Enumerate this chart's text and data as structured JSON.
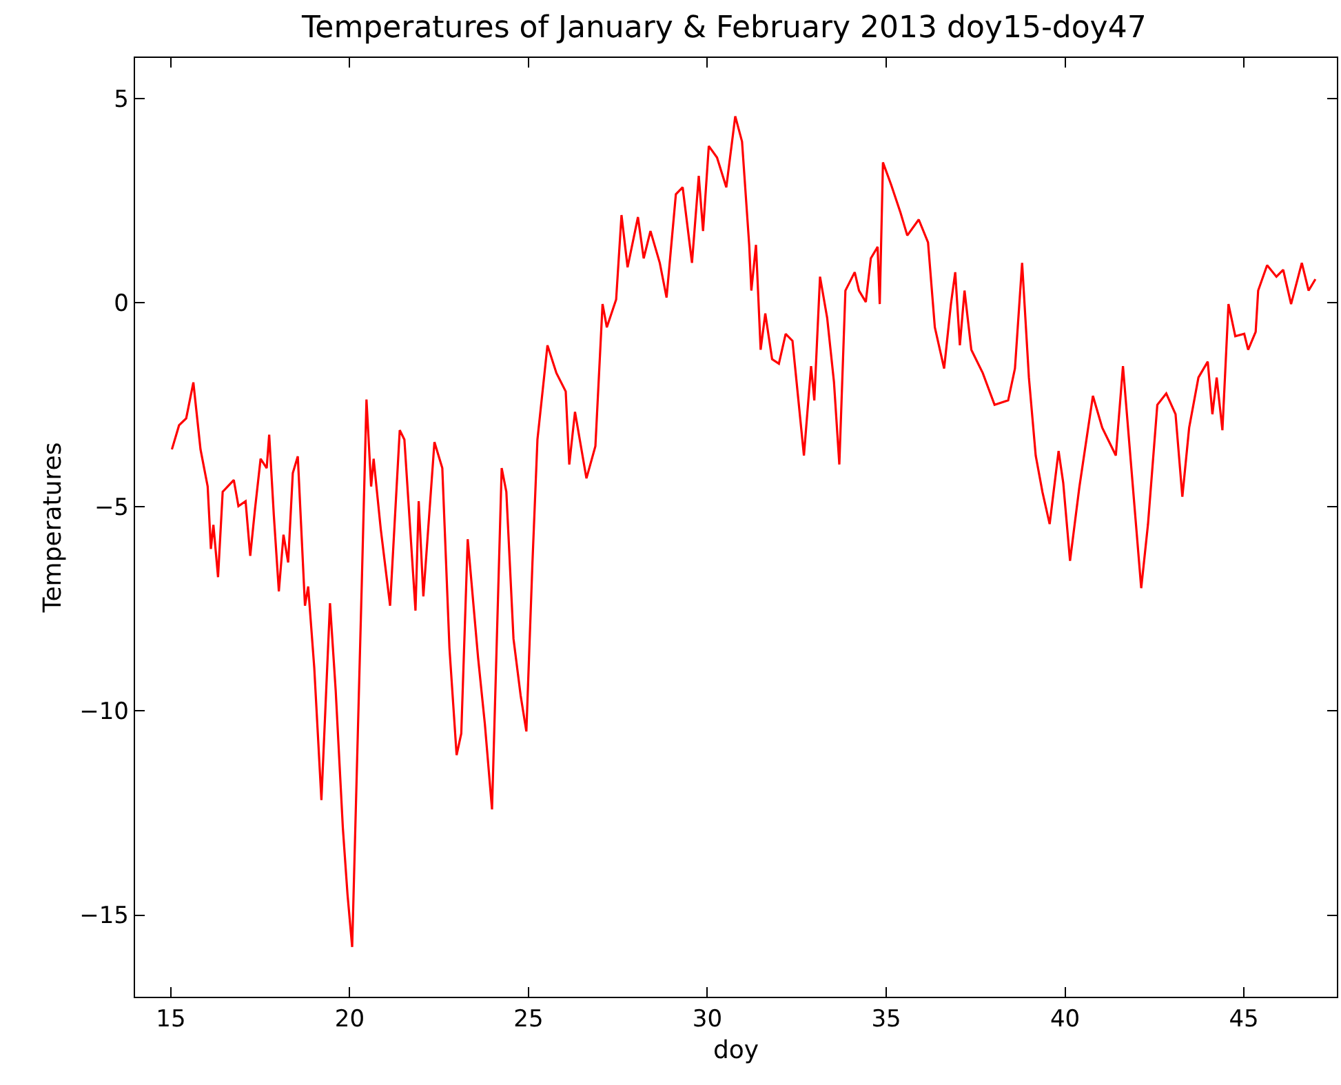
{
  "chart_data": {
    "type": "line",
    "title": "Temperatures of January & February 2013 doy15-doy47",
    "xlabel": "doy",
    "ylabel": "Temperatures",
    "xlim": [
      14,
      47.6
    ],
    "ylim": [
      -17,
      6
    ],
    "xticks": [
      15,
      20,
      25,
      30,
      35,
      40,
      45
    ],
    "yticks": [
      {
        "value": -15,
        "label": "−15"
      },
      {
        "value": -10,
        "label": "−10"
      },
      {
        "value": -5,
        "label": "−5"
      },
      0,
      5
    ],
    "marker": "none",
    "line_style": "solid",
    "series": [
      {
        "color": "#ff0000",
        "x": [
          15.03,
          15.23,
          15.43,
          15.63,
          15.83,
          16.03,
          16.12,
          16.19,
          16.32,
          16.45,
          16.76,
          16.89,
          17.09,
          17.22,
          17.35,
          17.51,
          17.68,
          17.75,
          17.88,
          18.02,
          18.15,
          18.28,
          18.41,
          18.55,
          18.75,
          18.84,
          19.01,
          19.21,
          19.45,
          19.61,
          19.81,
          19.94,
          20.07,
          20.34,
          20.47,
          20.6,
          20.67,
          20.87,
          21.13,
          21.4,
          21.53,
          21.84,
          21.93,
          22.06,
          22.37,
          22.59,
          22.79,
          22.99,
          23.12,
          23.3,
          23.59,
          23.78,
          23.98,
          24.25,
          24.38,
          24.58,
          24.78,
          24.94,
          25.11,
          25.25,
          25.53,
          25.78,
          26.04,
          26.14,
          26.3,
          26.62,
          26.87,
          27.07,
          27.19,
          27.45,
          27.6,
          27.77,
          28.06,
          28.22,
          28.41,
          28.67,
          28.86,
          29.12,
          29.31,
          29.57,
          29.76,
          29.88,
          30.04,
          30.27,
          30.53,
          30.78,
          30.97,
          31.17,
          31.23,
          31.36,
          31.49,
          31.62,
          31.81,
          32.0,
          32.19,
          32.38,
          32.7,
          32.9,
          32.99,
          33.15,
          33.35,
          33.54,
          33.69,
          33.86,
          34.12,
          34.24,
          34.43,
          34.57,
          34.76,
          34.82,
          34.91,
          35.14,
          35.4,
          35.59,
          35.91,
          36.17,
          36.36,
          36.62,
          36.81,
          36.93,
          37.06,
          37.19,
          37.38,
          37.7,
          38.03,
          38.41,
          38.6,
          38.8,
          38.99,
          39.18,
          39.37,
          39.57,
          39.82,
          39.95,
          40.14,
          40.4,
          40.78,
          41.04,
          41.42,
          41.62,
          42.13,
          42.32,
          42.58,
          42.83,
          43.09,
          43.28,
          43.47,
          43.73,
          43.99,
          44.12,
          44.24,
          44.4,
          44.57,
          44.76,
          45.01,
          45.12,
          45.33,
          45.4,
          45.65,
          45.91,
          46.1,
          46.32,
          46.62,
          46.81,
          47.0
        ],
        "values": [
          -3.59,
          -3.0,
          -2.83,
          -1.95,
          -3.59,
          -4.5,
          -6.03,
          -5.44,
          -6.72,
          -4.63,
          -4.34,
          -4.98,
          -4.86,
          -6.2,
          -5.08,
          -3.82,
          -4.05,
          -3.23,
          -5.21,
          -7.07,
          -5.68,
          -6.36,
          -4.17,
          -3.76,
          -7.42,
          -6.95,
          -8.94,
          -12.18,
          -7.36,
          -9.51,
          -12.87,
          -14.5,
          -15.78,
          -6.83,
          -2.37,
          -4.5,
          -3.82,
          -5.55,
          -7.42,
          -3.12,
          -3.35,
          -7.54,
          -4.86,
          -7.19,
          -3.41,
          -4.05,
          -8.46,
          -11.08,
          -10.55,
          -5.79,
          -8.69,
          -10.32,
          -12.41,
          -4.05,
          -4.63,
          -8.23,
          -9.62,
          -10.5,
          -6.37,
          -3.35,
          -1.04,
          -1.72,
          -2.17,
          -3.96,
          -2.67,
          -4.3,
          -3.51,
          -0.03,
          -0.6,
          0.08,
          2.15,
          0.87,
          2.1,
          1.09,
          1.76,
          0.98,
          0.13,
          2.66,
          2.83,
          0.98,
          3.11,
          1.76,
          3.84,
          3.56,
          2.83,
          4.57,
          3.95,
          1.42,
          0.3,
          1.42,
          -1.15,
          -0.26,
          -1.38,
          -1.49,
          -0.76,
          -0.93,
          -3.74,
          -1.55,
          -2.39,
          0.64,
          -0.37,
          -1.94,
          -3.96,
          0.3,
          0.75,
          0.3,
          0.02,
          1.09,
          1.37,
          -0.03,
          3.44,
          2.89,
          2.21,
          1.65,
          2.04,
          1.48,
          -0.6,
          -1.61,
          -0.03,
          0.75,
          -1.04,
          0.3,
          -1.15,
          -1.72,
          -2.5,
          -2.39,
          -1.61,
          0.98,
          -1.83,
          -3.74,
          -4.64,
          -5.42,
          -3.63,
          -4.41,
          -6.32,
          -4.52,
          -2.28,
          -3.06,
          -3.74,
          -1.55,
          -6.99,
          -5.42,
          -2.5,
          -2.22,
          -2.73,
          -4.75,
          -3.06,
          -1.83,
          -1.44,
          -2.73,
          -1.83,
          -3.12,
          -0.03,
          -0.82,
          -0.76,
          -1.15,
          -0.71,
          0.3,
          0.92,
          0.64,
          0.81,
          -0.03,
          0.98,
          0.3,
          0.58
        ]
      }
    ]
  }
}
